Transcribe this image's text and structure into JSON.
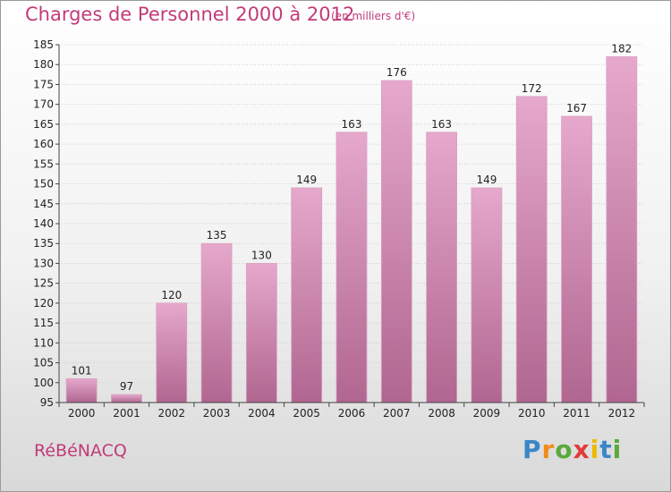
{
  "header": {
    "title": "Charges de Personnel 2000 à 2012",
    "subtitle": "(en milliers d'€)"
  },
  "footer": {
    "place": "RéBéNACQ",
    "logo": [
      "P",
      "r",
      "o",
      "x",
      "i",
      "t",
      "i"
    ],
    "logo_colors": [
      "#3a86c8",
      "#f08c1a",
      "#5aa93c",
      "#e23b3b",
      "#f0b800",
      "#3a86c8",
      "#5aa93c"
    ]
  },
  "colors": {
    "bar_top": "#e6a8cc",
    "bar_bottom": "#b06690",
    "axis": "#444444",
    "grid": "#cccccc",
    "title": "#c23b78"
  },
  "chart_data": {
    "type": "bar",
    "title": "Charges de Personnel 2000 à 2012",
    "subtitle": "(en milliers d'€)",
    "xlabel": "",
    "ylabel": "",
    "categories": [
      "2000",
      "2001",
      "2002",
      "2003",
      "2004",
      "2005",
      "2006",
      "2007",
      "2008",
      "2009",
      "2010",
      "2011",
      "2012"
    ],
    "values": [
      101,
      97,
      120,
      135,
      130,
      149,
      163,
      176,
      163,
      149,
      172,
      167,
      182
    ],
    "ylim": [
      95,
      185
    ],
    "yticks": [
      95,
      100,
      105,
      110,
      115,
      120,
      125,
      130,
      135,
      140,
      145,
      150,
      155,
      160,
      165,
      170,
      175,
      180,
      185
    ],
    "grid": true,
    "legend": "none"
  }
}
